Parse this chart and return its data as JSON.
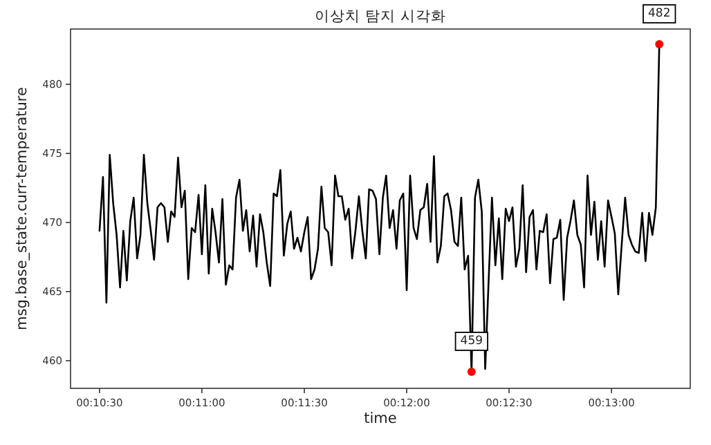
{
  "chart_data": {
    "type": "line",
    "title": "이상치 탐지 시각화",
    "xlabel": "time",
    "ylabel": "msg.base_state.curr-temperature",
    "xlim": [
      0.17264,
      0.22308
    ],
    "ylim": [
      458,
      484
    ],
    "xticks": [
      {
        "value": 0.175,
        "label": "00:10:30"
      },
      {
        "value": 0.18333,
        "label": "00:11:00"
      },
      {
        "value": 0.19167,
        "label": "00:11:30"
      },
      {
        "value": 0.2,
        "label": "00:12:00"
      },
      {
        "value": 0.20833,
        "label": "00:12:30"
      },
      {
        "value": 0.21667,
        "label": "00:13:00"
      }
    ],
    "yticks": [
      460,
      465,
      470,
      475,
      480
    ],
    "grid": false,
    "series": [
      {
        "color": "#000000",
        "marker": "none",
        "line_style": "solid",
        "x": [
          0.175,
          0.17528,
          0.17556,
          0.17583,
          0.17611,
          0.17639,
          0.17667,
          0.17694,
          0.17722,
          0.1775,
          0.17778,
          0.17806,
          0.17833,
          0.17861,
          0.17889,
          0.17917,
          0.17944,
          0.17972,
          0.18,
          0.18028,
          0.18056,
          0.18083,
          0.18111,
          0.18139,
          0.18167,
          0.18194,
          0.18222,
          0.1825,
          0.18278,
          0.18306,
          0.18333,
          0.18361,
          0.18389,
          0.18417,
          0.18444,
          0.18472,
          0.185,
          0.18528,
          0.18556,
          0.18583,
          0.18611,
          0.18639,
          0.18667,
          0.18694,
          0.18722,
          0.1875,
          0.18778,
          0.18806,
          0.18833,
          0.18861,
          0.18889,
          0.18917,
          0.18944,
          0.18972,
          0.19,
          0.19028,
          0.19056,
          0.19083,
          0.19111,
          0.19139,
          0.19167,
          0.19194,
          0.19222,
          0.1925,
          0.19278,
          0.19306,
          0.19333,
          0.19361,
          0.19389,
          0.19417,
          0.19444,
          0.19472,
          0.195,
          0.19528,
          0.19556,
          0.19583,
          0.19611,
          0.19639,
          0.19667,
          0.19694,
          0.19722,
          0.1975,
          0.19778,
          0.19806,
          0.19833,
          0.19861,
          0.19889,
          0.19917,
          0.19944,
          0.19972,
          0.2,
          0.20028,
          0.20056,
          0.20083,
          0.20111,
          0.20139,
          0.20167,
          0.20194,
          0.20222,
          0.2025,
          0.20278,
          0.20306,
          0.20333,
          0.20361,
          0.20389,
          0.20417,
          0.20444,
          0.20472,
          0.205,
          0.20528,
          0.20556,
          0.20583,
          0.20611,
          0.20639,
          0.20667,
          0.20694,
          0.20722,
          0.2075,
          0.20778,
          0.20806,
          0.20833,
          0.20861,
          0.20889,
          0.20917,
          0.20944,
          0.20972,
          0.21,
          0.21028,
          0.21056,
          0.21083,
          0.21111,
          0.21139,
          0.21167,
          0.21194,
          0.21222,
          0.2125,
          0.21278,
          0.21306,
          0.21333,
          0.21361,
          0.21389,
          0.21417,
          0.21444,
          0.21472,
          0.215,
          0.21528,
          0.21556,
          0.21583,
          0.21611,
          0.21639,
          0.21667,
          0.21694,
          0.21722,
          0.2175,
          0.21778,
          0.21806,
          0.21833,
          0.21861,
          0.21889,
          0.21917,
          0.21944,
          0.21972,
          0.22,
          0.22028,
          0.22056
        ],
        "values": [
          469.4,
          473.3,
          464.2,
          474.9,
          471.4,
          469.1,
          465.3,
          469.4,
          465.8,
          470.1,
          471.8,
          467.4,
          469.1,
          474.9,
          471.4,
          469.4,
          467.3,
          471.1,
          471.4,
          471.1,
          468.6,
          470.8,
          470.4,
          474.7,
          471.1,
          472.3,
          465.9,
          469.6,
          469.3,
          472.0,
          467.7,
          472.7,
          466.3,
          471.0,
          469.3,
          467.1,
          471.7,
          465.5,
          466.9,
          466.6,
          471.8,
          473.1,
          469.4,
          470.9,
          467.9,
          470.5,
          466.8,
          470.6,
          469.3,
          467.1,
          465.4,
          472.1,
          471.9,
          473.8,
          467.6,
          469.9,
          470.8,
          468.1,
          468.9,
          467.9,
          469.3,
          470.4,
          465.9,
          466.6,
          468.1,
          472.6,
          469.6,
          469.3,
          466.9,
          473.4,
          471.9,
          471.9,
          470.2,
          471.0,
          467.4,
          469.4,
          471.9,
          469.4,
          467.4,
          472.4,
          472.3,
          471.7,
          467.7,
          471.8,
          473.4,
          469.6,
          470.9,
          468.1,
          471.6,
          472.1,
          465.1,
          473.4,
          469.6,
          468.8,
          470.9,
          471.1,
          472.8,
          468.6,
          474.8,
          467.1,
          468.3,
          471.9,
          472.1,
          470.9,
          468.6,
          468.3,
          471.8,
          466.6,
          467.6,
          459.2,
          471.8,
          473.1,
          470.8,
          459.4,
          465.8,
          471.8,
          466.9,
          470.3,
          465.9,
          471.0,
          470.1,
          471.1,
          466.8,
          468.1,
          472.7,
          466.4,
          470.4,
          470.9,
          466.6,
          469.4,
          469.3,
          470.6,
          465.6,
          468.8,
          468.9,
          470.2,
          464.4,
          468.9,
          470.1,
          471.6,
          469.1,
          468.4,
          465.3,
          473.4,
          469.1,
          471.5,
          467.3,
          470.1,
          466.8,
          471.6,
          470.4,
          469.2,
          464.8,
          468.4,
          471.8,
          469.1,
          468.4,
          467.9,
          467.8,
          470.7,
          467.2,
          470.7,
          469.1,
          471.1,
          482.9
        ]
      },
      {
        "type": "scatter",
        "color": "#ff0000",
        "marker": "circle",
        "x": [
          0.20528,
          0.22056
        ],
        "values": [
          459.2,
          482.9
        ]
      }
    ],
    "annotations": [
      {
        "text": "459",
        "x": 0.20528,
        "y": 459.2
      },
      {
        "text": "482",
        "x": 0.22056,
        "y": 482.9
      }
    ]
  }
}
